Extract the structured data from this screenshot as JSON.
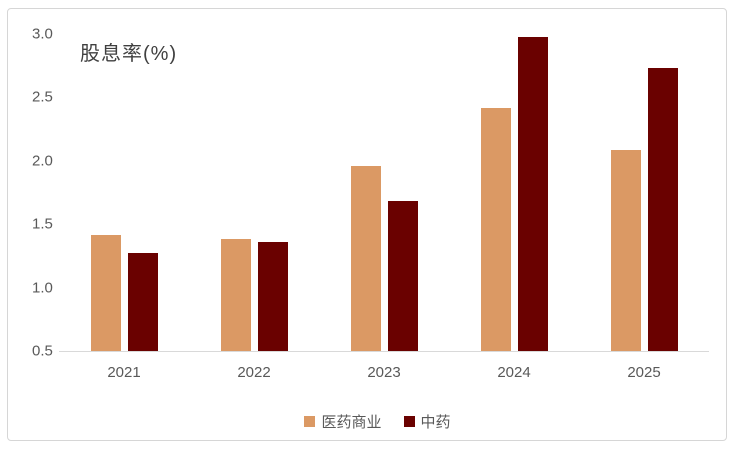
{
  "window": {
    "background": "#ffffff",
    "card_border": "#d6d6d6"
  },
  "chart_data": {
    "type": "bar",
    "title": "股息率(%)",
    "categories": [
      "2021",
      "2022",
      "2023",
      "2024",
      "2025"
    ],
    "series": [
      {
        "name": "医药商业",
        "color": "#DB9964",
        "values": [
          1.41,
          1.38,
          1.96,
          2.41,
          2.08
        ]
      },
      {
        "name": "中药",
        "color": "#6A0100",
        "values": [
          1.27,
          1.36,
          1.68,
          2.97,
          2.73
        ]
      }
    ],
    "xlabel": "",
    "ylabel": "股息率(%)",
    "ylim": [
      0.5,
      3.0
    ],
    "yticks": [
      0.5,
      1.0,
      1.5,
      2.0,
      2.5,
      3.0
    ],
    "ytick_labels": [
      "0.5",
      "1.0",
      "1.5",
      "2.0",
      "2.5",
      "3.0"
    ],
    "grid": false,
    "legend_position": "bottom",
    "axis_color": "#d9d9d9",
    "tick_text_color": "#595959",
    "title_color": "#404040"
  }
}
